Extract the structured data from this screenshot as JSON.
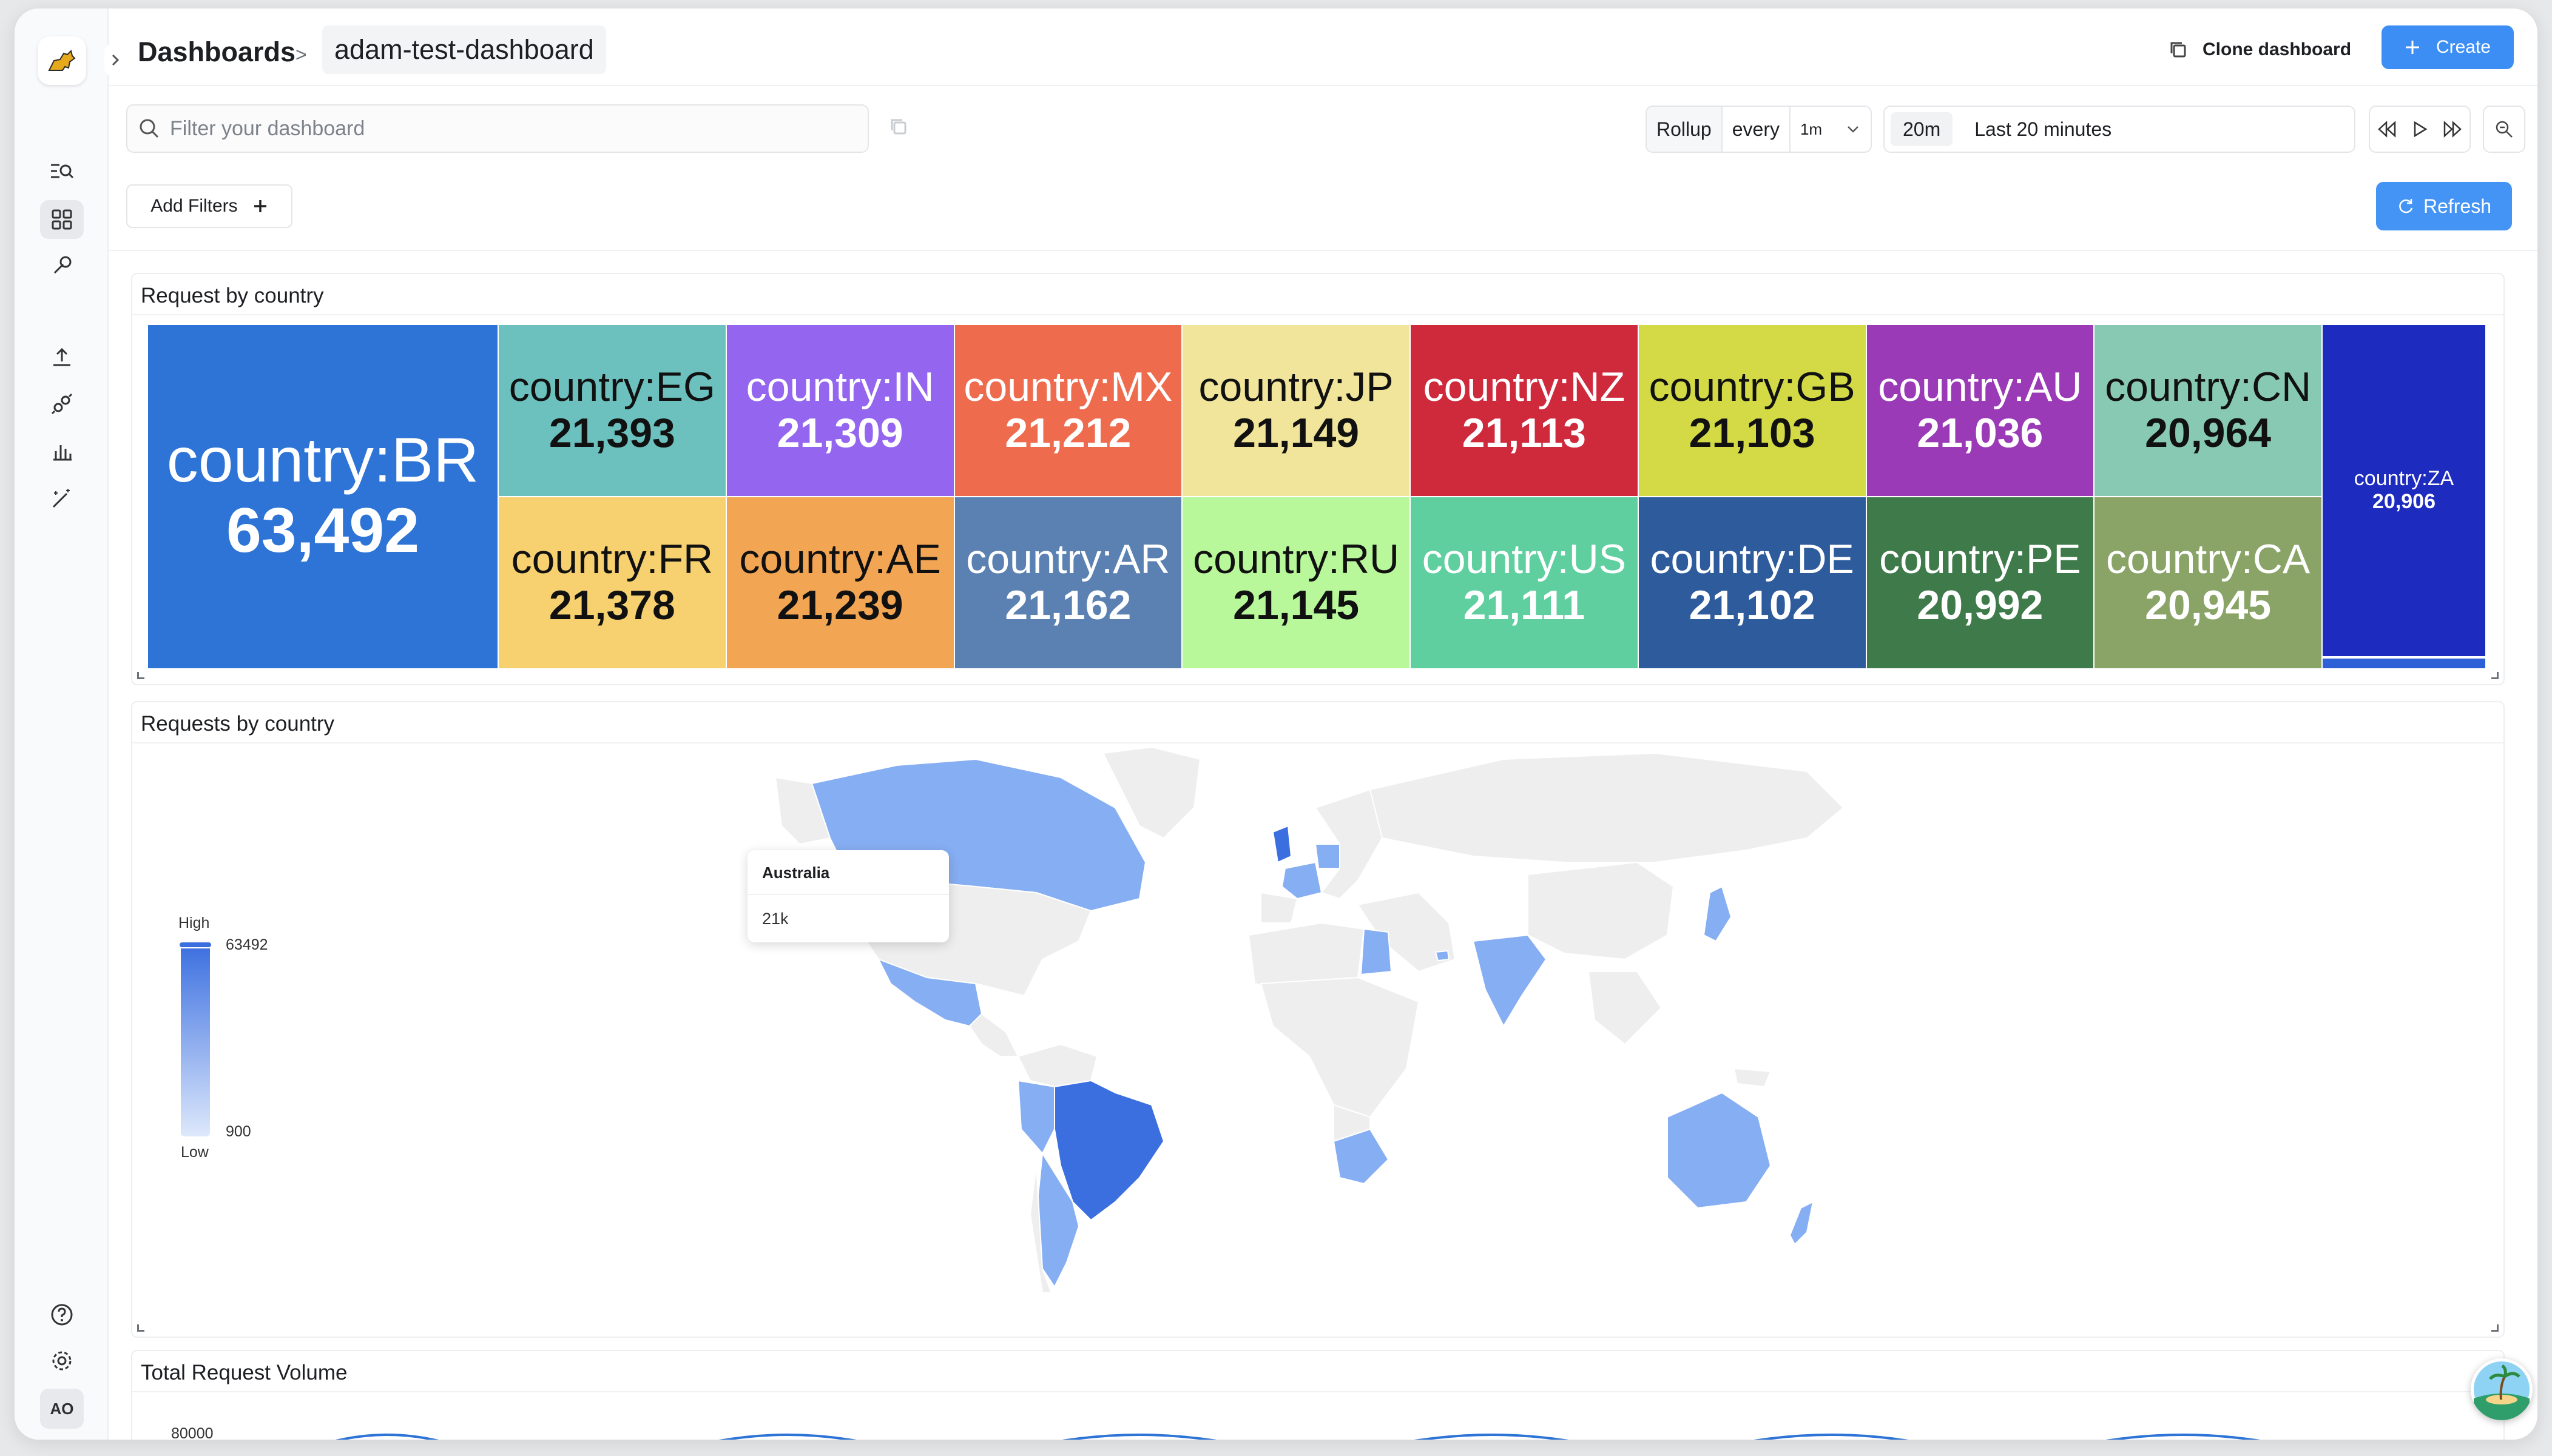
{
  "header": {
    "breadcrumb_root": "Dashboards",
    "breadcrumb_separator": ">",
    "dashboard_name": "adam-test-dashboard",
    "clone_label": "Clone dashboard",
    "create_label": "Create"
  },
  "toolbar": {
    "search_placeholder": "Filter your dashboard",
    "rollup_label": "Rollup",
    "every_label": "every",
    "interval_value": "1m",
    "time_short": "20m",
    "time_long": "Last 20 minutes",
    "add_filters_label": "Add Filters",
    "refresh_label": "Refresh"
  },
  "sidebar": {
    "avatar_initials": "AO",
    "icons": [
      "logs-search-icon",
      "dashboards-icon",
      "dev-tools-icon",
      "upload-icon",
      "integrations-icon",
      "charts-icon",
      "magic-wand-icon",
      "help-icon",
      "settings-icon"
    ]
  },
  "panels": {
    "treemap_title": "Request by country",
    "map_title": "Requests by country",
    "line_title": "Total Request Volume"
  },
  "treemap": {
    "tiles": [
      {
        "key": "country:BR",
        "value": "63,492",
        "color": "#2e74d6",
        "text": "#ffffff"
      },
      {
        "key": "country:EG",
        "value": "21,393",
        "color": "#6cc1bf",
        "text": "#111111"
      },
      {
        "key": "country:IN",
        "value": "21,309",
        "color": "#9466ef",
        "text": "#ffffff"
      },
      {
        "key": "country:MX",
        "value": "21,212",
        "color": "#ee6b4e",
        "text": "#ffffff"
      },
      {
        "key": "country:JP",
        "value": "21,149",
        "color": "#f0e59a",
        "text": "#111111"
      },
      {
        "key": "country:NZ",
        "value": "21,113",
        "color": "#cf2a3c",
        "text": "#ffffff"
      },
      {
        "key": "country:GB",
        "value": "21,103",
        "color": "#d3da45",
        "text": "#111111"
      },
      {
        "key": "country:AU",
        "value": "21,036",
        "color": "#9a3ab6",
        "text": "#ffffff"
      },
      {
        "key": "country:CN",
        "value": "20,964",
        "color": "#88c9b3",
        "text": "#111111"
      },
      {
        "key": "country:FR",
        "value": "21,378",
        "color": "#f7d070",
        "text": "#111111"
      },
      {
        "key": "country:AE",
        "value": "21,239",
        "color": "#f2a553",
        "text": "#111111"
      },
      {
        "key": "country:AR",
        "value": "21,162",
        "color": "#5b81b2",
        "text": "#ffffff"
      },
      {
        "key": "country:RU",
        "value": "21,145",
        "color": "#b8f79a",
        "text": "#111111"
      },
      {
        "key": "country:US",
        "value": "21,111",
        "color": "#5fcfa0",
        "text": "#ffffff"
      },
      {
        "key": "country:DE",
        "value": "21,102",
        "color": "#2d5b9c",
        "text": "#ffffff"
      },
      {
        "key": "country:PE",
        "value": "20,992",
        "color": "#3f7a4a",
        "text": "#ffffff"
      },
      {
        "key": "country:CA",
        "value": "20,945",
        "color": "#89a466",
        "text": "#ffffff"
      },
      {
        "key": "country:ZA",
        "value": "20,906",
        "color": "#1d2bbf",
        "text": "#ffffff"
      }
    ]
  },
  "map": {
    "legend_high": "High",
    "legend_low": "Low",
    "legend_max": "63492",
    "legend_min": "900",
    "colors": {
      "high": "#3b6fe0",
      "mid": "#86aef2",
      "none": "#eeeeee"
    },
    "tooltip_country": "Australia",
    "tooltip_value": "21k"
  },
  "line_chart": {
    "y_top_tick": "80000"
  },
  "colors": {
    "accent": "#3c8ef5",
    "sidebar_bg": "#f9fafb"
  }
}
